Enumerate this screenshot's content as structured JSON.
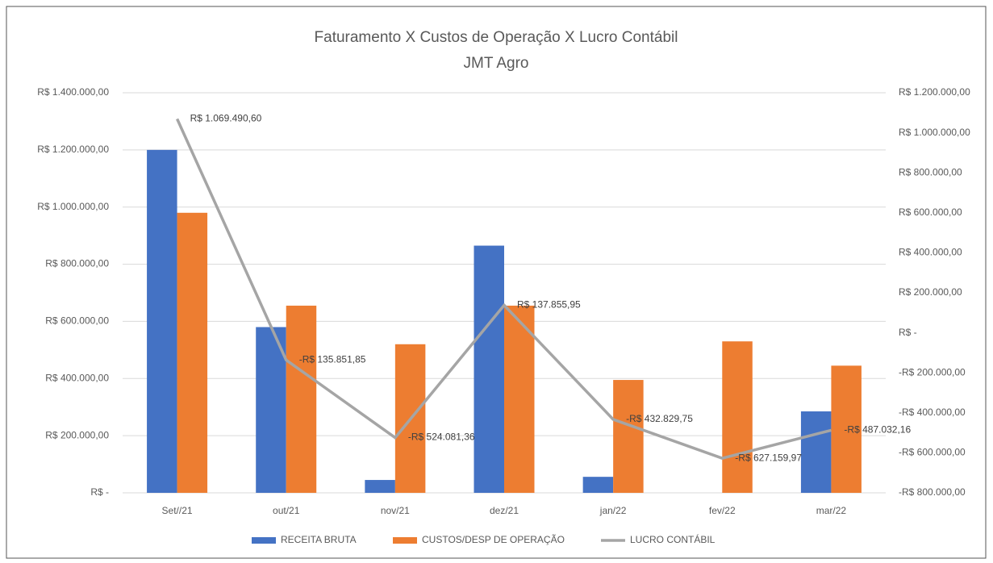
{
  "chart_data": {
    "type": "bar",
    "title": "Faturamento X Custos de Operação X Lucro Contábil",
    "subtitle": "JMT Agro",
    "categories": [
      "Set//21",
      "out/21",
      "nov/21",
      "dez/21",
      "jan/22",
      "fev/22",
      "mar/22"
    ],
    "series": [
      {
        "name": "RECEITA BRUTA",
        "color": "#4472c4",
        "values": [
          1200000,
          580000,
          45000,
          865000,
          56000,
          0,
          285000
        ]
      },
      {
        "name": "CUSTOS/DESP DE OPERAÇÃO",
        "color": "#ed7d31",
        "values": [
          980000,
          655000,
          520000,
          655000,
          395000,
          530000,
          445000
        ]
      },
      {
        "name": "LUCRO CONTÁBIL",
        "color": "#a5a5a5",
        "type": "line",
        "axis": "y2",
        "values": [
          1069490.6,
          -135851.85,
          -524081.36,
          137855.95,
          -432829.75,
          -627159.97,
          -487032.16
        ],
        "value_labels": [
          "R$ 1.069.490,60",
          "-R$ 135.851,85",
          "-R$ 524.081,36",
          "R$ 137.855,95",
          "-R$ 432.829,75",
          "-R$ 627.159,97",
          "-R$ 487.032,16"
        ]
      }
    ],
    "ylim": [
      0,
      1400000
    ],
    "yticks": [
      {
        "value": 0,
        "label": "R$ -"
      },
      {
        "value": 200000,
        "label": "R$ 200.000,00"
      },
      {
        "value": 400000,
        "label": "R$ 400.000,00"
      },
      {
        "value": 600000,
        "label": "R$ 600.000,00"
      },
      {
        "value": 800000,
        "label": "R$ 800.000,00"
      },
      {
        "value": 1000000,
        "label": "R$ 1.000.000,00"
      },
      {
        "value": 1200000,
        "label": "R$ 1.200.000,00"
      },
      {
        "value": 1400000,
        "label": "R$ 1.400.000,00"
      }
    ],
    "y2lim": [
      -800000,
      1200000
    ],
    "y2ticks": [
      {
        "value": -800000,
        "label": "-R$ 800.000,00"
      },
      {
        "value": -600000,
        "label": "-R$ 600.000,00"
      },
      {
        "value": -400000,
        "label": "-R$ 400.000,00"
      },
      {
        "value": -200000,
        "label": "-R$ 200.000,00"
      },
      {
        "value": 0,
        "label": "R$ -"
      },
      {
        "value": 200000,
        "label": "R$ 200.000,00"
      },
      {
        "value": 400000,
        "label": "R$ 400.000,00"
      },
      {
        "value": 600000,
        "label": "R$ 600.000,00"
      },
      {
        "value": 800000,
        "label": "R$ 800.000,00"
      },
      {
        "value": 1000000,
        "label": "R$ 1.000.000,00"
      },
      {
        "value": 1200000,
        "label": "R$ 1.200.000,00"
      }
    ],
    "grid": true,
    "legend": "bottom"
  }
}
